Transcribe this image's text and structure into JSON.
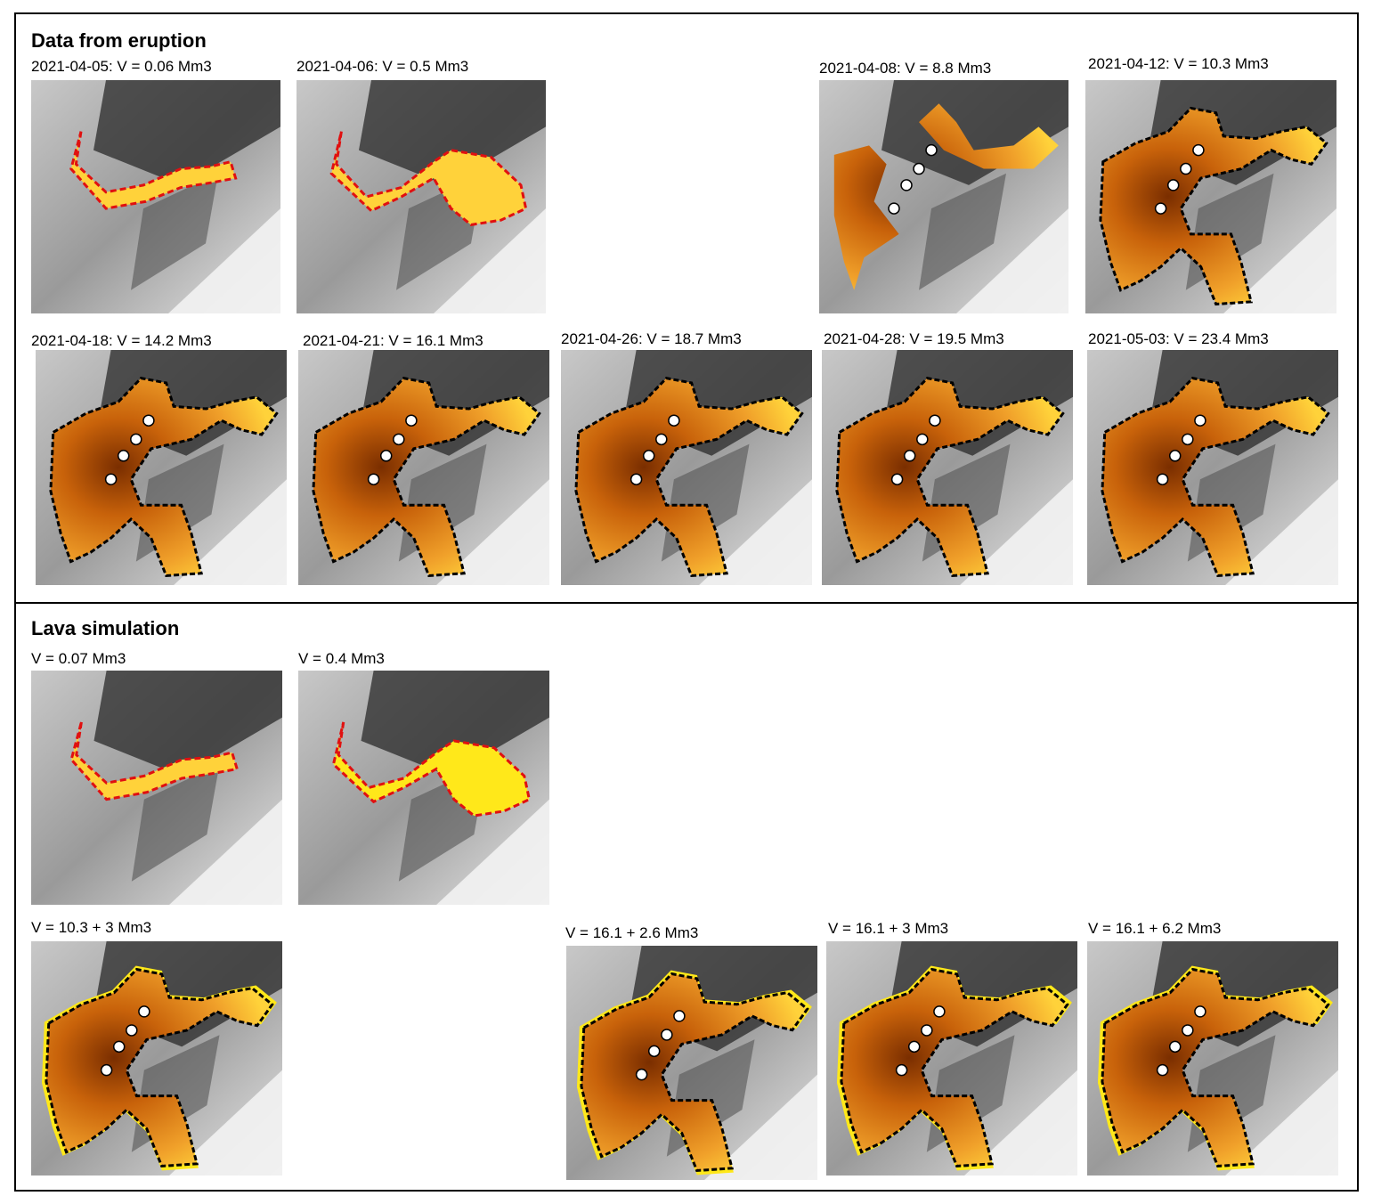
{
  "sections": [
    {
      "title": "Data from eruption",
      "panels": [
        {
          "label": "2021-04-05:  V = 0.06 Mm3"
        },
        {
          "label": "2021-04-06:  V = 0.5 Mm3"
        },
        {
          "label": "2021-04-08:  V = 8.8 Mm3"
        },
        {
          "label": "2021-04-12:  V = 10.3 Mm3"
        },
        {
          "label": "2021-04-18:  V = 14.2 Mm3"
        },
        {
          "label": "2021-04-21:  V = 16.1 Mm3"
        },
        {
          "label": "2021-04-26:  V = 18.7 Mm3"
        },
        {
          "label": "2021-04-28:  V = 19.5 Mm3"
        },
        {
          "label": "2021-05-03:  V = 23.4 Mm3"
        }
      ]
    },
    {
      "title": "Lava simulation",
      "panels": [
        {
          "label": "V = 0.07 Mm3"
        },
        {
          "label": "V = 0.4 Mm3"
        },
        {
          "label": "V = 10.3 + 3 Mm3"
        },
        {
          "label": "V = 16.1 + 2.6 Mm3"
        },
        {
          "label": "V = 16.1 + 3 Mm3"
        },
        {
          "label": "V = 16.1 + 6.2 Mm3"
        }
      ]
    }
  ]
}
